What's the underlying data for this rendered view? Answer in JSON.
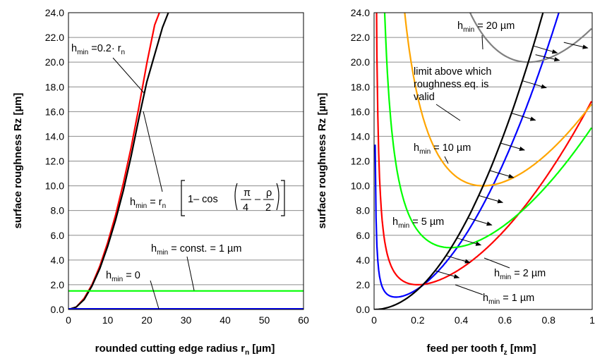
{
  "chart_data": [
    {
      "type": "line",
      "xlabel": "rounded cutting edge radius r",
      "xlabel_sub": "n",
      "xlabel_unit": " [µm]",
      "ylabel": "surface roughness  Rz [µm]",
      "xlim": [
        0,
        60
      ],
      "ylim": [
        0,
        24
      ],
      "xticks": [
        "0",
        "10",
        "20",
        "30",
        "40",
        "50",
        "60"
      ],
      "yticks": [
        "0.0",
        "2.0",
        "4.0",
        "6.0",
        "8.0",
        "10.0",
        "12.0",
        "14.0",
        "16.0",
        "18.0",
        "20.0",
        "22.0",
        "24.0"
      ],
      "grid": true,
      "series": [
        {
          "color": "#ff0000",
          "x": [
            0,
            2,
            4,
            6,
            8,
            10,
            12,
            14,
            16,
            18,
            20,
            22,
            23.2
          ],
          "y": [
            0,
            0.2,
            0.9,
            2.0,
            3.5,
            5.4,
            7.6,
            10.2,
            13.1,
            16.4,
            19.9,
            23.0,
            24.0
          ]
        },
        {
          "color": "#000000",
          "x": [
            0,
            2,
            4,
            6,
            8,
            10,
            12,
            14,
            16,
            18,
            20,
            22,
            24,
            25.5
          ],
          "y": [
            0,
            0.2,
            0.8,
            1.9,
            3.3,
            5.1,
            7.2,
            9.6,
            12.4,
            15.5,
            18.4,
            20.6,
            22.8,
            24.0
          ]
        },
        {
          "color": "#00ff00",
          "x": [
            0,
            60
          ],
          "y": [
            1.5,
            1.5
          ]
        },
        {
          "color": "#0000ff",
          "x": [
            0,
            60
          ],
          "y": [
            0.05,
            0.05
          ]
        }
      ],
      "annotations": {
        "hmin_prefix": "h",
        "hmin_sub": "min",
        "a1_expr": " =0.2· r",
        "a1_sub": "n",
        "a2_eq": " = r",
        "a2_sub": "n",
        "a2_one_minus_cos": "1– cos",
        "a2_pi": "π",
        "a2_four": "4",
        "a2_minus": "–",
        "a2_rho": "ρ",
        "a2_two": "2",
        "a3_expr": " = const. = 1 µm",
        "a4_expr": " = 0"
      }
    },
    {
      "type": "line",
      "xlabel": "feed per tooth f",
      "xlabel_sub": "z",
      "xlabel_unit": " [mm]",
      "ylabel": "surface roughness  Rz [µm]",
      "xlim": [
        0,
        1
      ],
      "ylim": [
        0,
        24
      ],
      "xticks": [
        "0",
        "0.2",
        "0.4",
        "0.6",
        "0.8",
        "1"
      ],
      "yticks": [
        "0.0",
        "2.0",
        "4.0",
        "6.0",
        "8.0",
        "10.0",
        "12.0",
        "14.0",
        "16.0",
        "18.0",
        "20.0",
        "22.0",
        "24.0"
      ],
      "grid": true,
      "series": [
        {
          "label": "h_min = 1 µm",
          "color": "#0000ff",
          "min_x": 0.1,
          "min_y": 1.0,
          "h": 1
        },
        {
          "label": "h_min = 2 µm",
          "color": "#ff0000",
          "min_x": 0.2,
          "min_y": 2.0,
          "h": 2
        },
        {
          "label": "h_min = 5 µm",
          "color": "#00ff00",
          "min_x": 0.35,
          "min_y": 5.0,
          "h": 5
        },
        {
          "label": "h_min = 10 µm",
          "color": "#ffa500",
          "min_x": 0.5,
          "min_y": 10.0,
          "h": 10
        },
        {
          "label": "h_min = 20 µm",
          "color": "#808080",
          "min_x": 0.707,
          "min_y": 20.0,
          "h": 20
        },
        {
          "label": "limit",
          "color": "#000000",
          "limit_coeff": 40
        }
      ],
      "annotations": {
        "hmin_prefix": "h",
        "hmin_sub": "min",
        "a20": " = 20 µm",
        "a10": " = 10 µm",
        "a5": " = 5 µm",
        "a2": " = 2 µm",
        "a1": " = 1 µm",
        "limit_line1": "limit above which",
        "limit_line2": "roughness eq. is",
        "limit_line3": "valid"
      }
    }
  ]
}
